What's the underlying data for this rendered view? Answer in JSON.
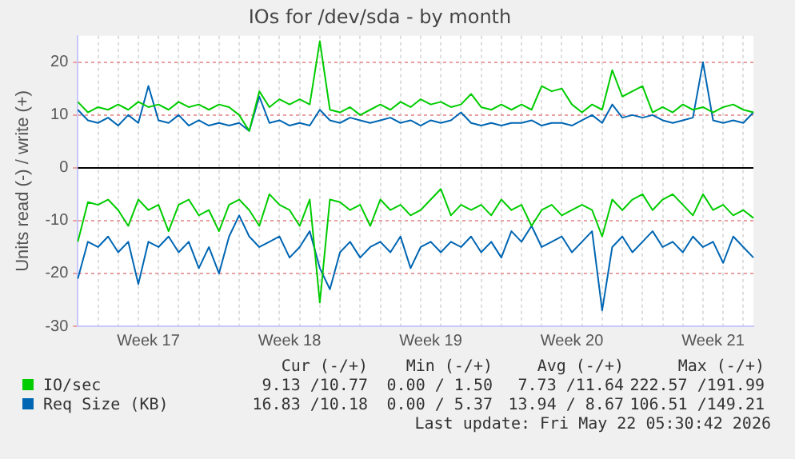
{
  "chart_data": {
    "type": "line",
    "title": "IOs for /dev/sda - by month",
    "ylabel": "Units read (-) / write (+)",
    "categories": [
      null,
      null,
      null,
      null,
      null,
      null,
      null,
      "Week 17",
      null,
      null,
      null,
      null,
      null,
      null,
      null,
      null,
      null,
      null,
      null,
      null,
      null,
      "Week 18",
      null,
      null,
      null,
      null,
      null,
      null,
      null,
      null,
      null,
      null,
      null,
      null,
      null,
      "Week 19",
      null,
      null,
      null,
      null,
      null,
      null,
      null,
      null,
      null,
      null,
      null,
      null,
      null,
      "Week 20",
      null,
      null,
      null,
      null,
      null,
      null,
      null,
      null,
      null,
      null,
      null,
      null,
      null,
      "Week 21",
      null,
      null,
      null,
      null
    ],
    "ylim": [
      -30,
      25
    ],
    "yticks": [
      -30,
      -20,
      -10,
      0,
      10,
      20
    ],
    "grid": true,
    "legend": "bottom",
    "marker": "none",
    "line_style": "solid",
    "ref_lines": [
      {
        "axis": "y",
        "value": 0,
        "color": "#000000"
      }
    ],
    "series": [
      {
        "name": "IO/sec",
        "color": "#00cc00",
        "values": [
          12.5,
          10.5,
          11.5,
          11,
          12,
          11,
          12.5,
          11.5,
          12,
          11,
          12.5,
          11.5,
          12,
          11,
          12,
          11.5,
          10,
          7,
          14.5,
          11.5,
          13,
          12,
          13,
          12,
          24,
          11,
          10.5,
          11.5,
          10,
          11,
          12,
          11,
          12.5,
          11.5,
          13,
          12,
          12.5,
          11.5,
          12,
          14,
          11.5,
          11,
          12,
          11,
          12,
          11,
          15.5,
          14.5,
          15,
          12,
          10.5,
          12,
          11,
          18.5,
          13.5,
          14.5,
          15.5,
          10.5,
          11.5,
          10.5,
          12,
          11,
          11.5,
          10.5,
          11.5,
          12,
          11,
          10.5
        ]
      },
      {
        "color": "#00cc00",
        "values": [
          -14,
          -6.5,
          -7,
          -6,
          -8,
          -11,
          -6,
          -8,
          -7,
          -12,
          -7,
          -6,
          -9,
          -8,
          -12,
          -7,
          -6,
          -8,
          -11,
          -5,
          -7,
          -8,
          -11,
          -6,
          -25.5,
          -6,
          -6.5,
          -8,
          -7,
          -11,
          -6,
          -8,
          -7,
          -9,
          -8,
          -6,
          -4,
          -9,
          -7,
          -8,
          -7,
          -9,
          -6,
          -8,
          -7,
          -11,
          -8,
          -7,
          -9,
          -8,
          -7,
          -8,
          -13,
          -6,
          -8,
          -6,
          -5,
          -8,
          -6,
          -5,
          -7,
          -9,
          -5,
          -8,
          -7,
          -9,
          -8,
          -9.5
        ]
      },
      {
        "name": "Req Size (KB)",
        "color": "#0066b3",
        "values": [
          11,
          9,
          8.5,
          9.5,
          8,
          10,
          8.5,
          15.5,
          9,
          8.5,
          10,
          8,
          9,
          8,
          8.5,
          8,
          8.5,
          7,
          13.5,
          8.5,
          9,
          8,
          8.5,
          8,
          11,
          9,
          8.5,
          9.5,
          9,
          8.5,
          9,
          9.5,
          8.5,
          9,
          8,
          9,
          8.5,
          9,
          10.5,
          8.5,
          8,
          8.5,
          8,
          8.5,
          8.5,
          9,
          8,
          8.5,
          8.5,
          8,
          9,
          10,
          8.5,
          12,
          9.5,
          10,
          9.5,
          10,
          9,
          8.5,
          9,
          9.5,
          20,
          9,
          8.5,
          9,
          8.5,
          10.5
        ]
      },
      {
        "color": "#0066b3",
        "values": [
          -21,
          -14,
          -15,
          -13,
          -16,
          -14,
          -22,
          -14,
          -15,
          -13,
          -16,
          -14,
          -19,
          -15,
          -20,
          -13,
          -9,
          -13,
          -15,
          -14,
          -13,
          -17,
          -15,
          -12,
          -19,
          -23,
          -16,
          -14,
          -17,
          -15,
          -14,
          -16,
          -13,
          -19,
          -15,
          -14,
          -16,
          -14,
          -15,
          -13,
          -16,
          -14,
          -17,
          -12,
          -14,
          -11,
          -15,
          -14,
          -13,
          -16,
          -14,
          -12,
          -27,
          -15,
          -13,
          -16,
          -14,
          -12,
          -15,
          -14,
          -16,
          -13,
          -15,
          -14,
          -18,
          -13,
          -15,
          -17
        ]
      }
    ],
    "annotations": [
      "Cur (-/+)",
      "Min (-/+)",
      "Avg (-/+)",
      "Max (-/+)",
      "9.13 /10.77",
      "0.00 / 1.50",
      "7.73 /11.64",
      "222.57 /191.99",
      "16.83 /10.18",
      "0.00 / 5.37",
      "13.94 / 8.67",
      "106.51 /149.21",
      "Last update: Fri May 22 05:30:42 2026"
    ]
  }
}
